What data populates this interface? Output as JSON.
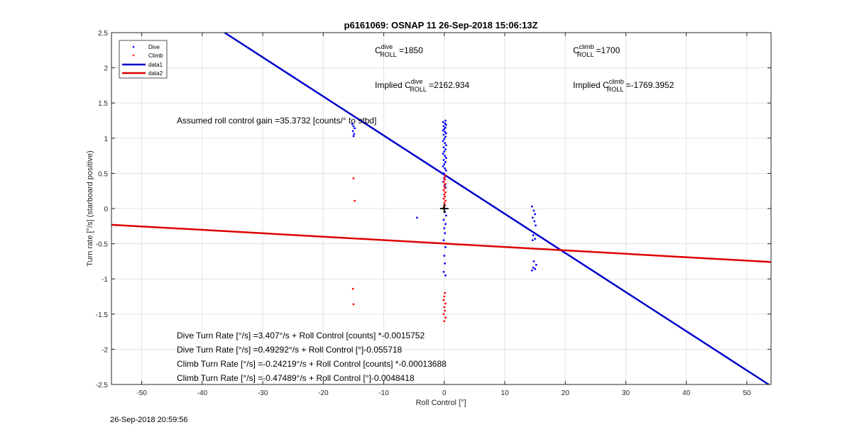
{
  "chart_data": {
    "type": "scatter",
    "title": "p6161069: OSNAP 11 26-Sep-2018 15:06:13Z",
    "xlabel": "Roll Control [°]",
    "ylabel": "Turn rate [°/s] (starboard positive)",
    "xlim": [
      -55,
      54
    ],
    "ylim": [
      -2.5,
      2.5
    ],
    "xticks": [
      -50,
      -40,
      -30,
      -20,
      -10,
      0,
      10,
      20,
      30,
      40,
      50
    ],
    "yticks": [
      -2.5,
      -2,
      -1.5,
      -1,
      -0.5,
      0,
      0.5,
      1,
      1.5,
      2,
      2.5
    ],
    "xtick_labels": [
      "-50",
      "-40",
      "-30",
      "-20",
      "-10",
      "0",
      "10",
      "20",
      "30",
      "40",
      "50"
    ],
    "ytick_labels": [
      "-2.5",
      "-2",
      "-1.5",
      "-1",
      "-0.5",
      "0",
      "0.5",
      "1",
      "1.5",
      "2",
      "2.5"
    ],
    "grid": true,
    "legend_position": "top-left",
    "series": [
      {
        "name": "Dive",
        "kind": "points",
        "color": "#0000ff",
        "points": [
          [
            -15.2,
            1.2
          ],
          [
            -15.0,
            1.17
          ],
          [
            -14.8,
            1.14
          ],
          [
            -15.1,
            1.1
          ],
          [
            -14.9,
            1.06
          ],
          [
            -15.0,
            1.03
          ],
          [
            0.2,
            1.25
          ],
          [
            -0.2,
            1.23
          ],
          [
            0.1,
            1.21
          ],
          [
            0.3,
            1.19
          ],
          [
            -0.1,
            1.17
          ],
          [
            0.2,
            1.15
          ],
          [
            0.0,
            1.13
          ],
          [
            -0.2,
            1.11
          ],
          [
            0.1,
            1.09
          ],
          [
            0.3,
            1.07
          ],
          [
            -0.1,
            1.05
          ],
          [
            0.2,
            1.02
          ],
          [
            0.0,
            0.99
          ],
          [
            -0.2,
            0.96
          ],
          [
            0.1,
            0.93
          ],
          [
            0.3,
            0.9
          ],
          [
            -0.1,
            0.87
          ],
          [
            0.2,
            0.84
          ],
          [
            0.0,
            0.81
          ],
          [
            -0.2,
            0.78
          ],
          [
            0.1,
            0.75
          ],
          [
            0.3,
            0.72
          ],
          [
            -0.1,
            0.69
          ],
          [
            0.2,
            0.66
          ],
          [
            0.0,
            0.63
          ],
          [
            -0.2,
            0.6
          ],
          [
            0.1,
            0.57
          ],
          [
            0.3,
            0.54
          ],
          [
            -0.1,
            0.5
          ],
          [
            0.2,
            0.46
          ],
          [
            0.0,
            0.42
          ],
          [
            -0.2,
            0.38
          ],
          [
            0.1,
            0.34
          ],
          [
            0.2,
            0.3
          ],
          [
            0.1,
            -0.05
          ],
          [
            0.3,
            -0.1
          ],
          [
            -0.1,
            -0.16
          ],
          [
            0.2,
            -0.22
          ],
          [
            0.0,
            -0.28
          ],
          [
            0.1,
            -0.35
          ],
          [
            -0.1,
            -0.45
          ],
          [
            0.2,
            -0.55
          ],
          [
            0.0,
            -0.67
          ],
          [
            0.1,
            -0.78
          ],
          [
            -0.1,
            -0.9
          ],
          [
            0.2,
            -0.95
          ],
          [
            -4.5,
            -0.13
          ],
          [
            14.5,
            0.03
          ],
          [
            14.8,
            -0.03
          ],
          [
            15.0,
            -0.08
          ],
          [
            14.6,
            -0.13
          ],
          [
            14.9,
            -0.18
          ],
          [
            15.1,
            -0.24
          ],
          [
            14.7,
            -0.38
          ],
          [
            15.0,
            -0.43
          ],
          [
            14.6,
            -0.45
          ],
          [
            14.8,
            -0.75
          ],
          [
            15.2,
            -0.8
          ],
          [
            14.7,
            -0.84
          ],
          [
            15.0,
            -0.86
          ],
          [
            14.5,
            -0.88
          ]
        ]
      },
      {
        "name": "Climb",
        "kind": "points",
        "color": "#ff0000",
        "points": [
          [
            -15.0,
            0.43
          ],
          [
            -14.8,
            0.11
          ],
          [
            -15.1,
            -1.14
          ],
          [
            -15.0,
            -1.36
          ],
          [
            0.2,
            0.47
          ],
          [
            0.0,
            0.44
          ],
          [
            0.1,
            0.41
          ],
          [
            -0.1,
            0.38
          ],
          [
            0.2,
            0.35
          ],
          [
            0.0,
            0.32
          ],
          [
            0.1,
            0.29
          ],
          [
            -0.1,
            0.26
          ],
          [
            0.2,
            0.23
          ],
          [
            0.0,
            0.2
          ],
          [
            0.1,
            0.17
          ],
          [
            -0.1,
            0.14
          ],
          [
            0.2,
            0.11
          ],
          [
            0.0,
            0.08
          ],
          [
            0.1,
            0.05
          ],
          [
            -0.1,
            0.02
          ],
          [
            0.1,
            -1.2
          ],
          [
            0.0,
            -1.25
          ],
          [
            -0.1,
            -1.3
          ],
          [
            0.2,
            -1.35
          ],
          [
            0.0,
            -1.4
          ],
          [
            0.1,
            -1.45
          ],
          [
            -0.1,
            -1.5
          ],
          [
            0.2,
            -1.55
          ],
          [
            0.0,
            -1.6
          ]
        ]
      },
      {
        "name": "data1",
        "kind": "line",
        "color": "#0000cc",
        "x": [
          -36.3,
          53.6
        ],
        "y": [
          2.5,
          -2.5
        ]
      },
      {
        "name": "data2",
        "kind": "line",
        "color": "#dd0000",
        "x": [
          -55,
          54
        ],
        "y": [
          -0.23,
          -0.76
        ]
      }
    ],
    "marker": {
      "x": 0,
      "y": 0,
      "symbol": "+"
    },
    "annotations": {
      "c_dive": {
        "prefix": "C",
        "sup": "dive",
        "sub": "ROLL",
        "value": " =1850"
      },
      "c_climb": {
        "prefix": "C",
        "sup": "climb",
        "sub": "ROLL",
        "value": " =1700"
      },
      "implied_dive": {
        "prefix": "Implied C",
        "sup": "dive",
        "sub": "ROLL",
        "value": " =2162.934"
      },
      "implied_climb": {
        "prefix": "Implied C",
        "sup": "climb",
        "sub": "ROLL",
        "value": " =-1769.3952"
      },
      "gain": "Assumed roll control gain =35.3732 [counts/° to stbd]",
      "equations": [
        "Dive Turn Rate [°/s] =3.407°/s + Roll Control [counts] *-0.0015752",
        "Dive Turn Rate [°/s] =0.49292°/s + Roll Control [°]-0.055718",
        "Climb Turn Rate [°/s] =-0.24219°/s + Roll Control [counts] *-0.00013688",
        "Climb Turn Rate [°/s] =-0.47489°/s + Roll Control [°]-0.0048418"
      ]
    }
  },
  "footer": {
    "timestamp": "26-Sep-2018 20:59:56"
  }
}
